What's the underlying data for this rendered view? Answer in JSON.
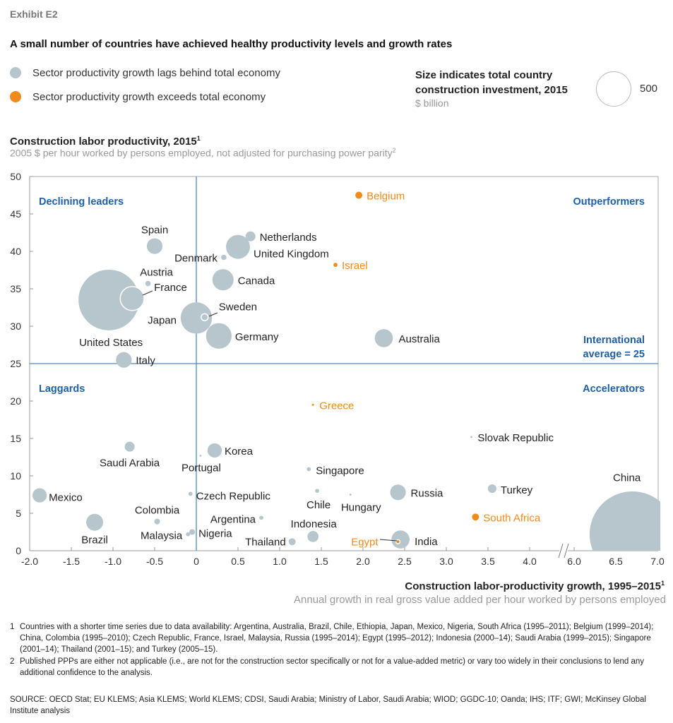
{
  "exhibit": "Exhibit E2",
  "title": "A small number of countries have achieved healthy productivity levels and growth rates",
  "legend": [
    {
      "label": "Sector productivity growth lags behind total economy",
      "color": "#b7c5cc"
    },
    {
      "label": "Sector productivity growth exceeds total economy",
      "color": "#f08a1c"
    }
  ],
  "size_legend": {
    "line1": "Size indicates total country",
    "line2": "construction investment, 2015",
    "unit": "$ billion",
    "value": "500"
  },
  "footnotes": [
    {
      "num": "1",
      "text": "Countries with a shorter time series due to data availability: Argentina, Australia, Brazil, Chile, Ethiopia, Japan, Mexico, Nigeria, South Africa (1995–2011); Belgium (1999–2014); China, Colombia (1995–2010); Czech Republic, France, Israel, Malaysia, Russia (1995–2014); Egypt (1995–2012); Indonesia (2000–14); Saudi Arabia (1999–2015); Singapore (2001–14); Thailand (2001–15); and Turkey (2005–15)."
    },
    {
      "num": "2",
      "text": "Published PPPs are either not applicable (i.e., are not for the construction sector specifically or not for a value-added metric) or vary too widely in their conclusions to lend any additional confidence to the analysis."
    }
  ],
  "source": "SOURCE:  OECD Stat; EU KLEMS; Asia KLEMS; World KLEMS; CDSI, Saudi Arabia; Ministry of Labor, Saudi Arabia; WIOD; GGDC-10; Oanda;  IHS; ITF; GWI;  McKinsey Global Institute analysis",
  "chart_data": {
    "type": "scatter",
    "ylabel": "Construction labor productivity, 2015",
    "ylabel_sup": "1",
    "ysublabel": "2005 $ per hour worked by persons employed, not adjusted for purchasing power parity",
    "ysublabel_sup": "2",
    "xlabel": "Construction labor-productivity growth, 1995–2015",
    "xlabel_sup": "1",
    "xsublabel": "Annual growth in real gross value added per hour worked by persons employed",
    "xlim": [
      -2.0,
      7.0
    ],
    "x_axis_break": [
      4.0,
      6.0
    ],
    "ylim": [
      0,
      50
    ],
    "xticks": [
      "-2.0",
      "-1.5",
      "-1.0",
      "-0.5",
      "0",
      "0.5",
      "1.0",
      "1.5",
      "2.0",
      "2.5",
      "3.0",
      "3.5",
      "4.0",
      "6.0",
      "6.5",
      "7.0"
    ],
    "yticks": [
      "0",
      "5",
      "10",
      "15",
      "20",
      "25",
      "30",
      "35",
      "40",
      "45",
      "50"
    ],
    "reference_lines": {
      "x": 0,
      "y": 25,
      "y_label": [
        "International",
        "average = 25"
      ]
    },
    "quadrants": {
      "top_left": "Declining leaders",
      "top_right": "Outperformers",
      "bottom_left": "Laggards",
      "bottom_right": "Accelerators"
    },
    "colors": {
      "lags": "#b7c5cc",
      "exceeds": "#f08a1c",
      "reference": "#4f87c2",
      "quadrant_text": "#1f5fa5"
    },
    "points": [
      {
        "name": "Belgium",
        "x": 1.95,
        "y": 47.5,
        "size": 12,
        "group": "exceeds"
      },
      {
        "name": "Israel",
        "x": 1.67,
        "y": 38.2,
        "size": 4,
        "group": "exceeds"
      },
      {
        "name": "Greece",
        "x": 1.4,
        "y": 19.5,
        "size": 1,
        "group": "exceeds"
      },
      {
        "name": "South Africa",
        "x": 3.35,
        "y": 4.5,
        "size": 12,
        "group": "exceeds"
      },
      {
        "name": "Spain",
        "x": -0.5,
        "y": 40.7,
        "size": 60,
        "group": "lags"
      },
      {
        "name": "Netherlands",
        "x": 0.65,
        "y": 42.0,
        "size": 24,
        "group": "lags"
      },
      {
        "name": "United Kingdom",
        "x": 0.5,
        "y": 40.6,
        "size": 140,
        "group": "lags"
      },
      {
        "name": "Denmark",
        "x": 0.33,
        "y": 39.2,
        "size": 7,
        "group": "lags"
      },
      {
        "name": "Canada",
        "x": 0.32,
        "y": 36.2,
        "size": 110,
        "group": "lags"
      },
      {
        "name": "United States",
        "x": -1.05,
        "y": 33.5,
        "size": 900,
        "group": "lags"
      },
      {
        "name": "Austria",
        "x": -0.58,
        "y": 35.7,
        "size": 7,
        "group": "lags"
      },
      {
        "name": "France",
        "x": -0.77,
        "y": 33.7,
        "size": 140,
        "group": "lags"
      },
      {
        "name": "Japan",
        "x": 0.0,
        "y": 31.1,
        "size": 240,
        "group": "lags"
      },
      {
        "name": "Sweden",
        "x": 0.1,
        "y": 31.2,
        "size": 12,
        "group": "lags"
      },
      {
        "name": "Germany",
        "x": 0.27,
        "y": 28.7,
        "size": 160,
        "group": "lags"
      },
      {
        "name": "Australia",
        "x": 2.25,
        "y": 28.4,
        "size": 80,
        "group": "lags"
      },
      {
        "name": "Italy",
        "x": -0.87,
        "y": 25.5,
        "size": 60,
        "group": "lags"
      },
      {
        "name": "Saudi Arabia",
        "x": -0.8,
        "y": 13.9,
        "size": 24,
        "group": "lags"
      },
      {
        "name": "Korea",
        "x": 0.22,
        "y": 13.4,
        "size": 50,
        "group": "lags"
      },
      {
        "name": "Portugal",
        "x": 0.05,
        "y": 12.7,
        "size": 1,
        "group": "lags"
      },
      {
        "name": "Mexico",
        "x": -1.88,
        "y": 7.4,
        "size": 50,
        "group": "lags"
      },
      {
        "name": "Brazil",
        "x": -1.22,
        "y": 3.8,
        "size": 70,
        "group": "lags"
      },
      {
        "name": "Colombia",
        "x": -0.47,
        "y": 3.9,
        "size": 8,
        "group": "lags"
      },
      {
        "name": "Malaysia",
        "x": -0.1,
        "y": 2.2,
        "size": 4,
        "group": "lags"
      },
      {
        "name": "Nigeria",
        "x": -0.05,
        "y": 2.5,
        "size": 8,
        "group": "lags"
      },
      {
        "name": "Czech Republic",
        "x": -0.07,
        "y": 7.6,
        "size": 4,
        "group": "lags"
      },
      {
        "name": "Argentina",
        "x": 0.78,
        "y": 4.4,
        "size": 4,
        "group": "lags"
      },
      {
        "name": "Thailand",
        "x": 1.15,
        "y": 1.2,
        "size": 12,
        "group": "lags"
      },
      {
        "name": "Indonesia",
        "x": 1.4,
        "y": 1.9,
        "size": 30,
        "group": "lags"
      },
      {
        "name": "Singapore",
        "x": 1.35,
        "y": 10.9,
        "size": 4,
        "group": "lags"
      },
      {
        "name": "Chile",
        "x": 1.45,
        "y": 8.0,
        "size": 4,
        "group": "lags"
      },
      {
        "name": "Hungary",
        "x": 1.85,
        "y": 7.5,
        "size": 1,
        "group": "lags"
      },
      {
        "name": "Slovak Republic",
        "x": 3.3,
        "y": 15.2,
        "size": 1,
        "group": "lags"
      },
      {
        "name": "Russia",
        "x": 2.42,
        "y": 7.8,
        "size": 60,
        "group": "lags"
      },
      {
        "name": "Turkey",
        "x": 3.55,
        "y": 8.3,
        "size": 18,
        "group": "lags"
      },
      {
        "name": "India",
        "x": 2.45,
        "y": 1.5,
        "size": 80,
        "group": "lags"
      },
      {
        "name": "Egypt",
        "x": 2.42,
        "y": 1.2,
        "size": 4,
        "group": "exceeds"
      },
      {
        "name": "China",
        "x": 6.7,
        "y": 2.2,
        "size": 1800,
        "group": "lags"
      }
    ]
  }
}
